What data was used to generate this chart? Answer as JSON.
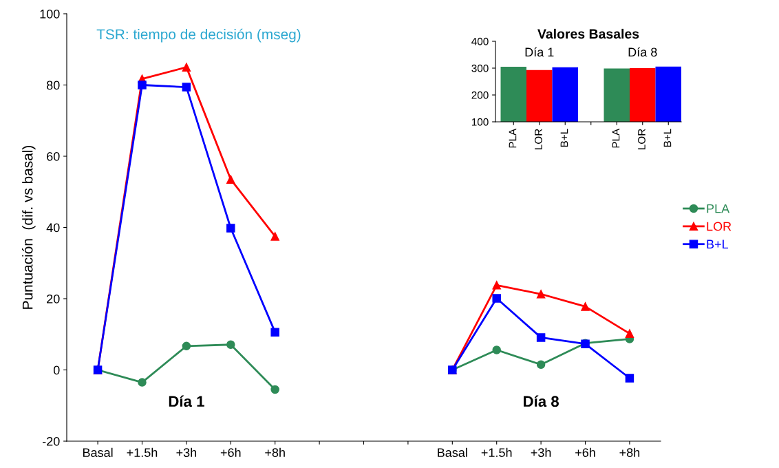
{
  "chart_data": [
    {
      "type": "line",
      "title": "TSR: tiempo de decisión (mseg)",
      "ylabel": "Puntuación  (dif. vs basal)",
      "categories": [
        "Basal",
        "+1.5h",
        "+3h",
        "+6h",
        "+8h",
        null,
        null,
        null,
        "Basal",
        "+1.5h",
        "+3h",
        "+6h",
        "+8h"
      ],
      "series": [
        {
          "name": "PLA",
          "color": "#2e8b57",
          "marker": "circle",
          "values": [
            0,
            -3.5,
            6.7,
            7.1,
            -5.5,
            null,
            null,
            null,
            0,
            5.6,
            1.5,
            7.5,
            8.7
          ]
        },
        {
          "name": "LOR",
          "color": "#ff0000",
          "marker": "triangle",
          "values": [
            0,
            81.7,
            85,
            53.5,
            37.5,
            null,
            null,
            null,
            0,
            23.8,
            21.3,
            17.8,
            10.2
          ]
        },
        {
          "name": "B+L",
          "color": "#0000ff",
          "marker": "square",
          "values": [
            0,
            80,
            79.4,
            39.8,
            10.6,
            null,
            null,
            null,
            0,
            20.1,
            9.1,
            7.3,
            -2.3
          ]
        }
      ],
      "ylim": [
        -20,
        100
      ],
      "yticks": [
        -20,
        0,
        20,
        40,
        60,
        80,
        100
      ],
      "grid": false,
      "legend": "right",
      "annotations": [
        "Día 1",
        "Día 8"
      ]
    },
    {
      "type": "bar",
      "title": "Valores Basales",
      "categories": [
        "PLA",
        "LOR",
        "B+L",
        null,
        "PLA",
        "LOR",
        "B+L"
      ],
      "values": [
        305,
        293,
        303,
        null,
        299,
        300,
        306
      ],
      "colors": [
        "#2e8b57",
        "#ff0000",
        "#0000ff",
        "#ffffff",
        "#2e8b57",
        "#ff0000",
        "#0000ff"
      ],
      "ylim": [
        100,
        400
      ],
      "yticks": [
        100,
        200,
        300,
        400
      ],
      "grid": false,
      "annotations": [
        "Día 1",
        "Día 8"
      ]
    }
  ]
}
